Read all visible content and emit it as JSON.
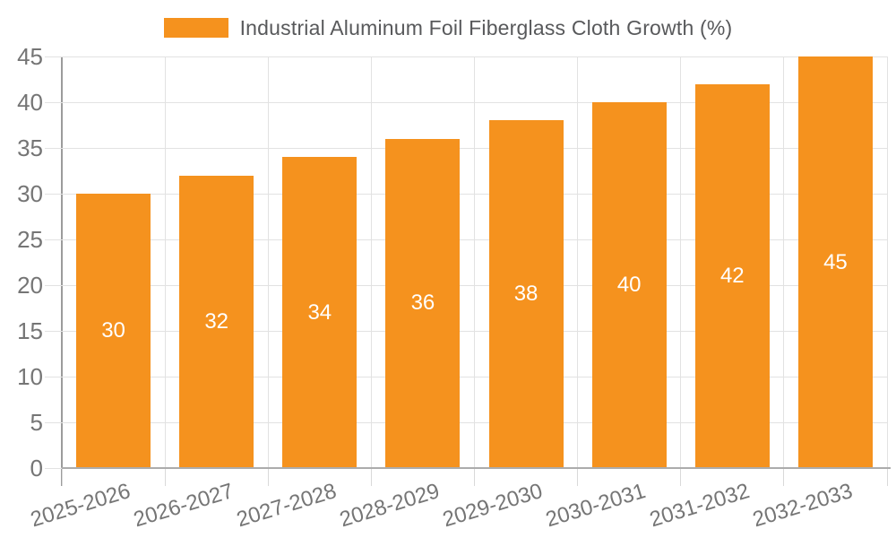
{
  "legend": {
    "label": "Industrial Aluminum Foil Fiberglass Cloth Growth (%)"
  },
  "chart_data": {
    "type": "bar",
    "title": "Industrial Aluminum Foil Fiberglass Cloth Growth (%)",
    "categories": [
      "2025-2026",
      "2026-2027",
      "2027-2028",
      "2028-2029",
      "2029-2030",
      "2030-2031",
      "2031-2032",
      "2032-2033"
    ],
    "values": [
      30,
      32,
      34,
      36,
      38,
      40,
      42,
      45
    ],
    "xlabel": "",
    "ylabel": "",
    "ylim": [
      0,
      45
    ],
    "yticks": [
      0,
      5,
      10,
      15,
      20,
      25,
      30,
      35,
      40,
      45
    ],
    "grid": true,
    "legend_position": "top",
    "bar_color": "#F5921E",
    "bar_label_color": "#FFFFFF",
    "axis_text_color": "#757575",
    "legend_text_color": "#58595B",
    "gridline_color": "#E2E2E2",
    "axis_line_color": "#9B9B9B"
  }
}
